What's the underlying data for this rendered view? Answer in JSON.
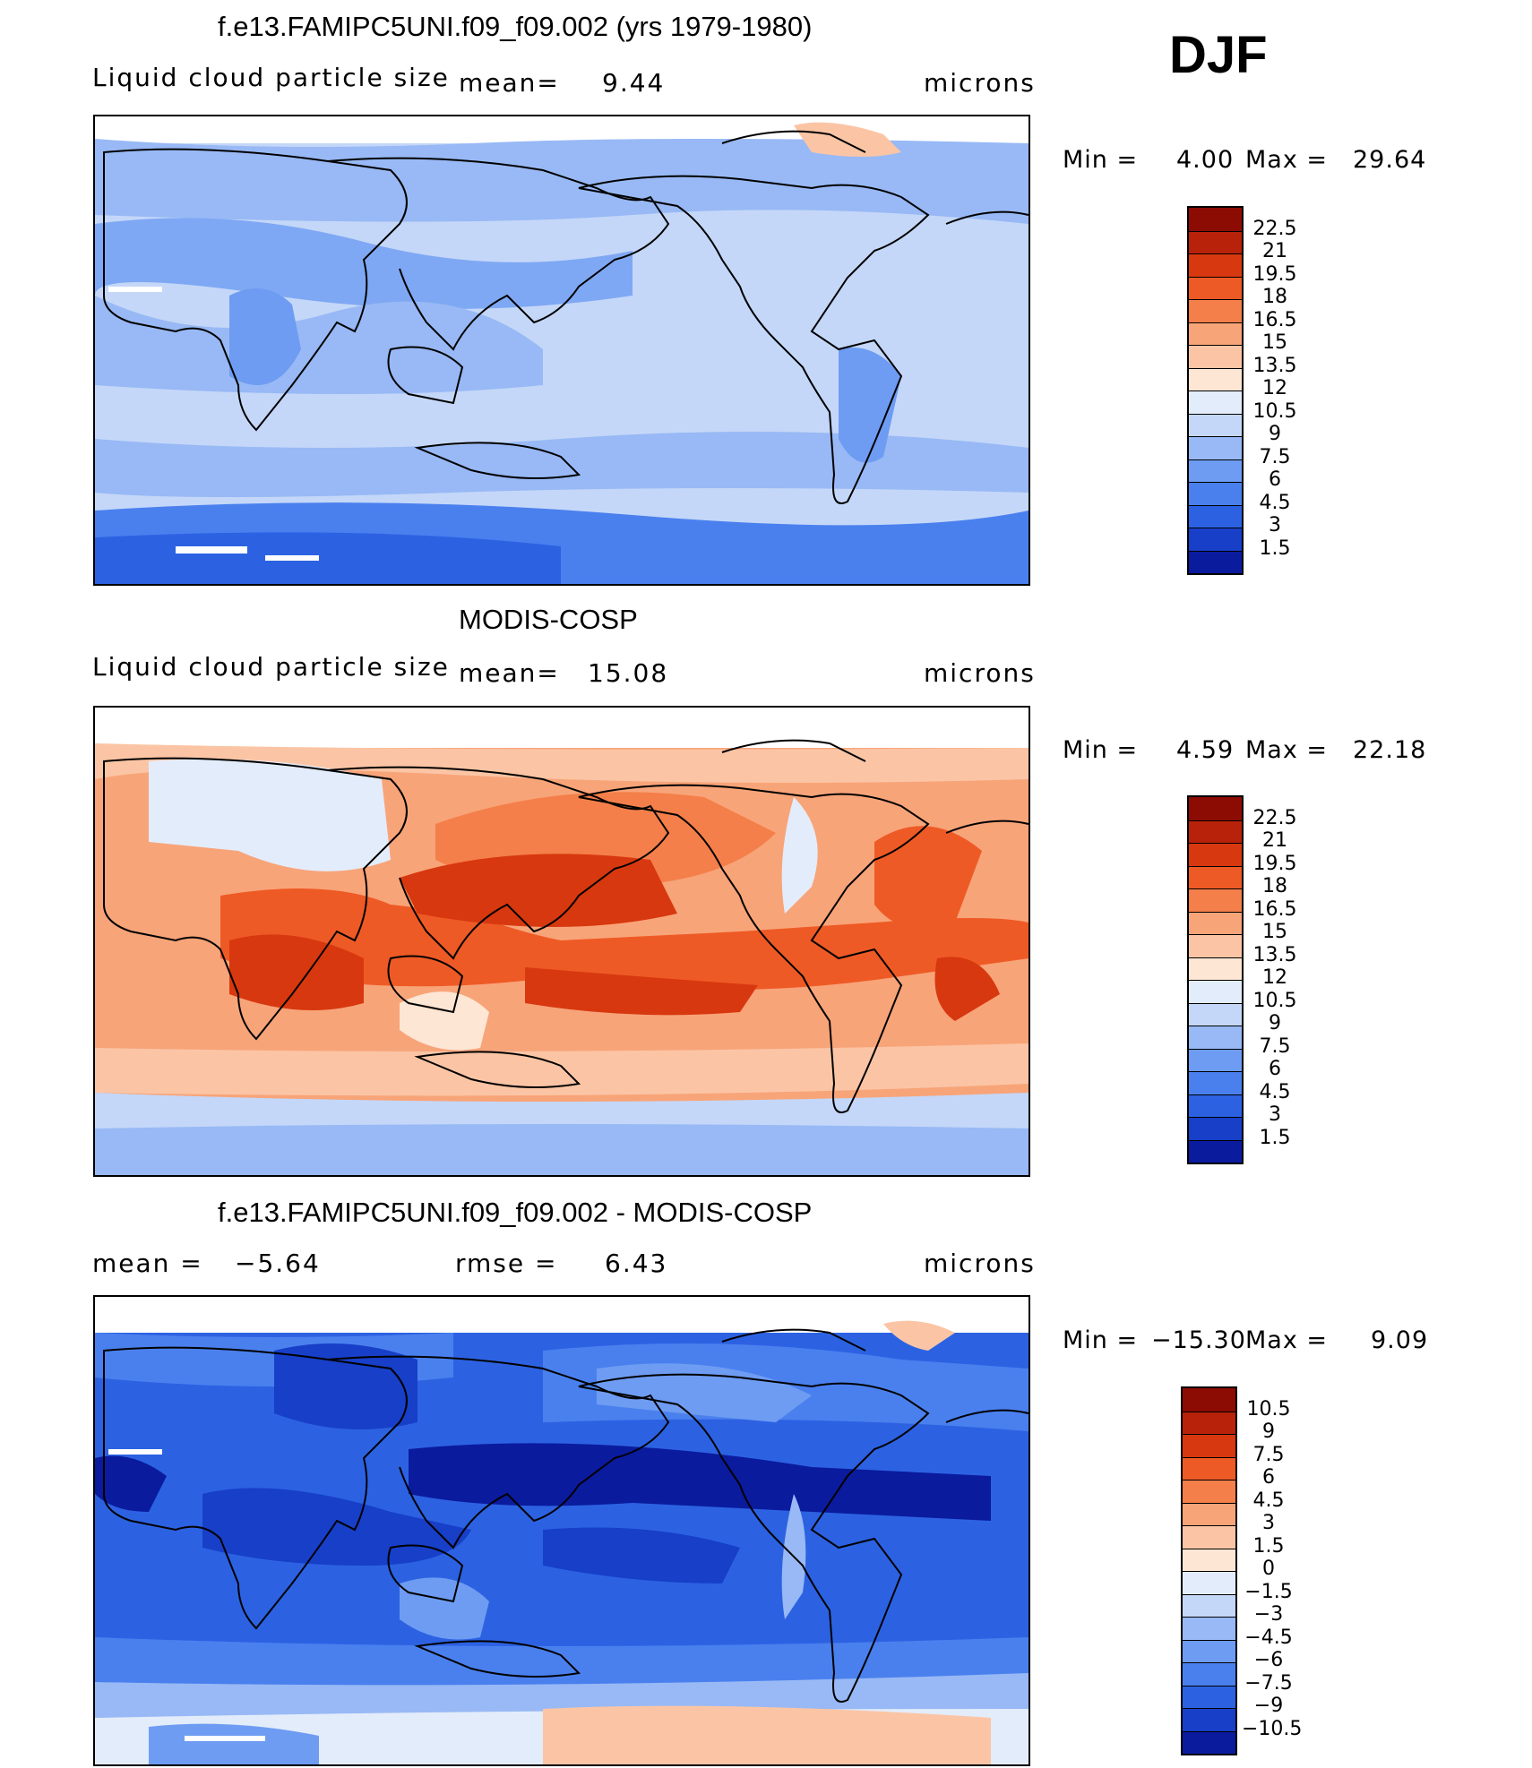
{
  "season": "DJF",
  "units": "microns",
  "palette_17": [
    "#08006b",
    "#0a1b9e",
    "#0f2fbf",
    "#1a45e0",
    "#2e63f0",
    "#4a80f5",
    "#6f9ef5",
    "#98b9f7",
    "#c3d8fa",
    "#e8eefc",
    "#fde7d7",
    "#fbcfb3",
    "#f8ae8a",
    "#f48a5e",
    "#ee6335",
    "#e14015",
    "#c02708",
    "#8c0c04"
  ],
  "panels": [
    {
      "id": "model",
      "title": "f.e13.FAMIPC5UNI.f09_f09.002 (yrs 1979-1980)",
      "label": "Liquid cloud particle size",
      "stat1_name": "mean=",
      "stat1_value": "9.44",
      "stat2_name": "",
      "stat2_value": "",
      "units": "microns",
      "min_label": "Min  =",
      "min_value": "4.00",
      "max_label": "Max  =",
      "max_value": "29.64",
      "levels": [
        "22.5",
        "21",
        "19.5",
        "18",
        "16.5",
        "15",
        "13.5",
        "12",
        "10.5",
        "9",
        "7.5",
        "6",
        "4.5",
        "3",
        "1.5"
      ],
      "colors": [
        "#8c0c04",
        "#b8220a",
        "#d8380f",
        "#ee5a25",
        "#f47f4a",
        "#f8a479",
        "#fbc5a5",
        "#fde6d4",
        "#e3ecfb",
        "#c4d7f8",
        "#98b9f5",
        "#6e9cf2",
        "#4a80ee",
        "#2c62e2",
        "#173fc8",
        "#0a1b9e"
      ]
    },
    {
      "id": "obs",
      "title": "MODIS-COSP",
      "label": "Liquid cloud particle size",
      "stat1_name": "mean=",
      "stat1_value": "15.08",
      "stat2_name": "",
      "stat2_value": "",
      "units": "microns",
      "min_label": "Min  =",
      "min_value": "4.59",
      "max_label": "Max  =",
      "max_value": "22.18",
      "levels": [
        "22.5",
        "21",
        "19.5",
        "18",
        "16.5",
        "15",
        "13.5",
        "12",
        "10.5",
        "9",
        "7.5",
        "6",
        "4.5",
        "3",
        "1.5"
      ],
      "colors": [
        "#8c0c04",
        "#b8220a",
        "#d8380f",
        "#ee5a25",
        "#f47f4a",
        "#f8a479",
        "#fbc5a5",
        "#fde6d4",
        "#e3ecfb",
        "#c4d7f8",
        "#98b9f5",
        "#6e9cf2",
        "#4a80ee",
        "#2c62e2",
        "#173fc8",
        "#0a1b9e"
      ]
    },
    {
      "id": "diff",
      "title": "f.e13.FAMIPC5UNI.f09_f09.002 - MODIS-COSP",
      "label": "",
      "stat1_name": "mean  =",
      "stat1_value": "−5.64",
      "stat2_name": "rmse  =",
      "stat2_value": "6.43",
      "units": "microns",
      "min_label": "Min  =",
      "min_value": "−15.30",
      "max_label": "Max  =",
      "max_value": "9.09",
      "levels": [
        "10.5",
        "9",
        "7.5",
        "6",
        "4.5",
        "3",
        "1.5",
        "0",
        "−1.5",
        "−3",
        "−4.5",
        "−6",
        "−7.5",
        "−9",
        "−10.5"
      ],
      "colors": [
        "#8c0c04",
        "#b8220a",
        "#d8380f",
        "#ee5a25",
        "#f47f4a",
        "#f8a479",
        "#fbc5a5",
        "#fde6d4",
        "#e3ecfb",
        "#c4d7f8",
        "#98b9f5",
        "#6e9cf2",
        "#4a80ee",
        "#2c62e2",
        "#173fc8",
        "#0a1b9e"
      ]
    }
  ],
  "map_colors": {
    "model_bg": "#c4d7f8",
    "model_band": "#98b9f5",
    "model_dark": "#4a80ee",
    "obs_bg": "#f8a479",
    "obs_hot": "#d8380f",
    "obs_cool": "#98b9f5",
    "diff_bg": "#2c62e2",
    "diff_deep": "#0a1b9e",
    "diff_light": "#98b9f5",
    "coast": "#000000"
  }
}
